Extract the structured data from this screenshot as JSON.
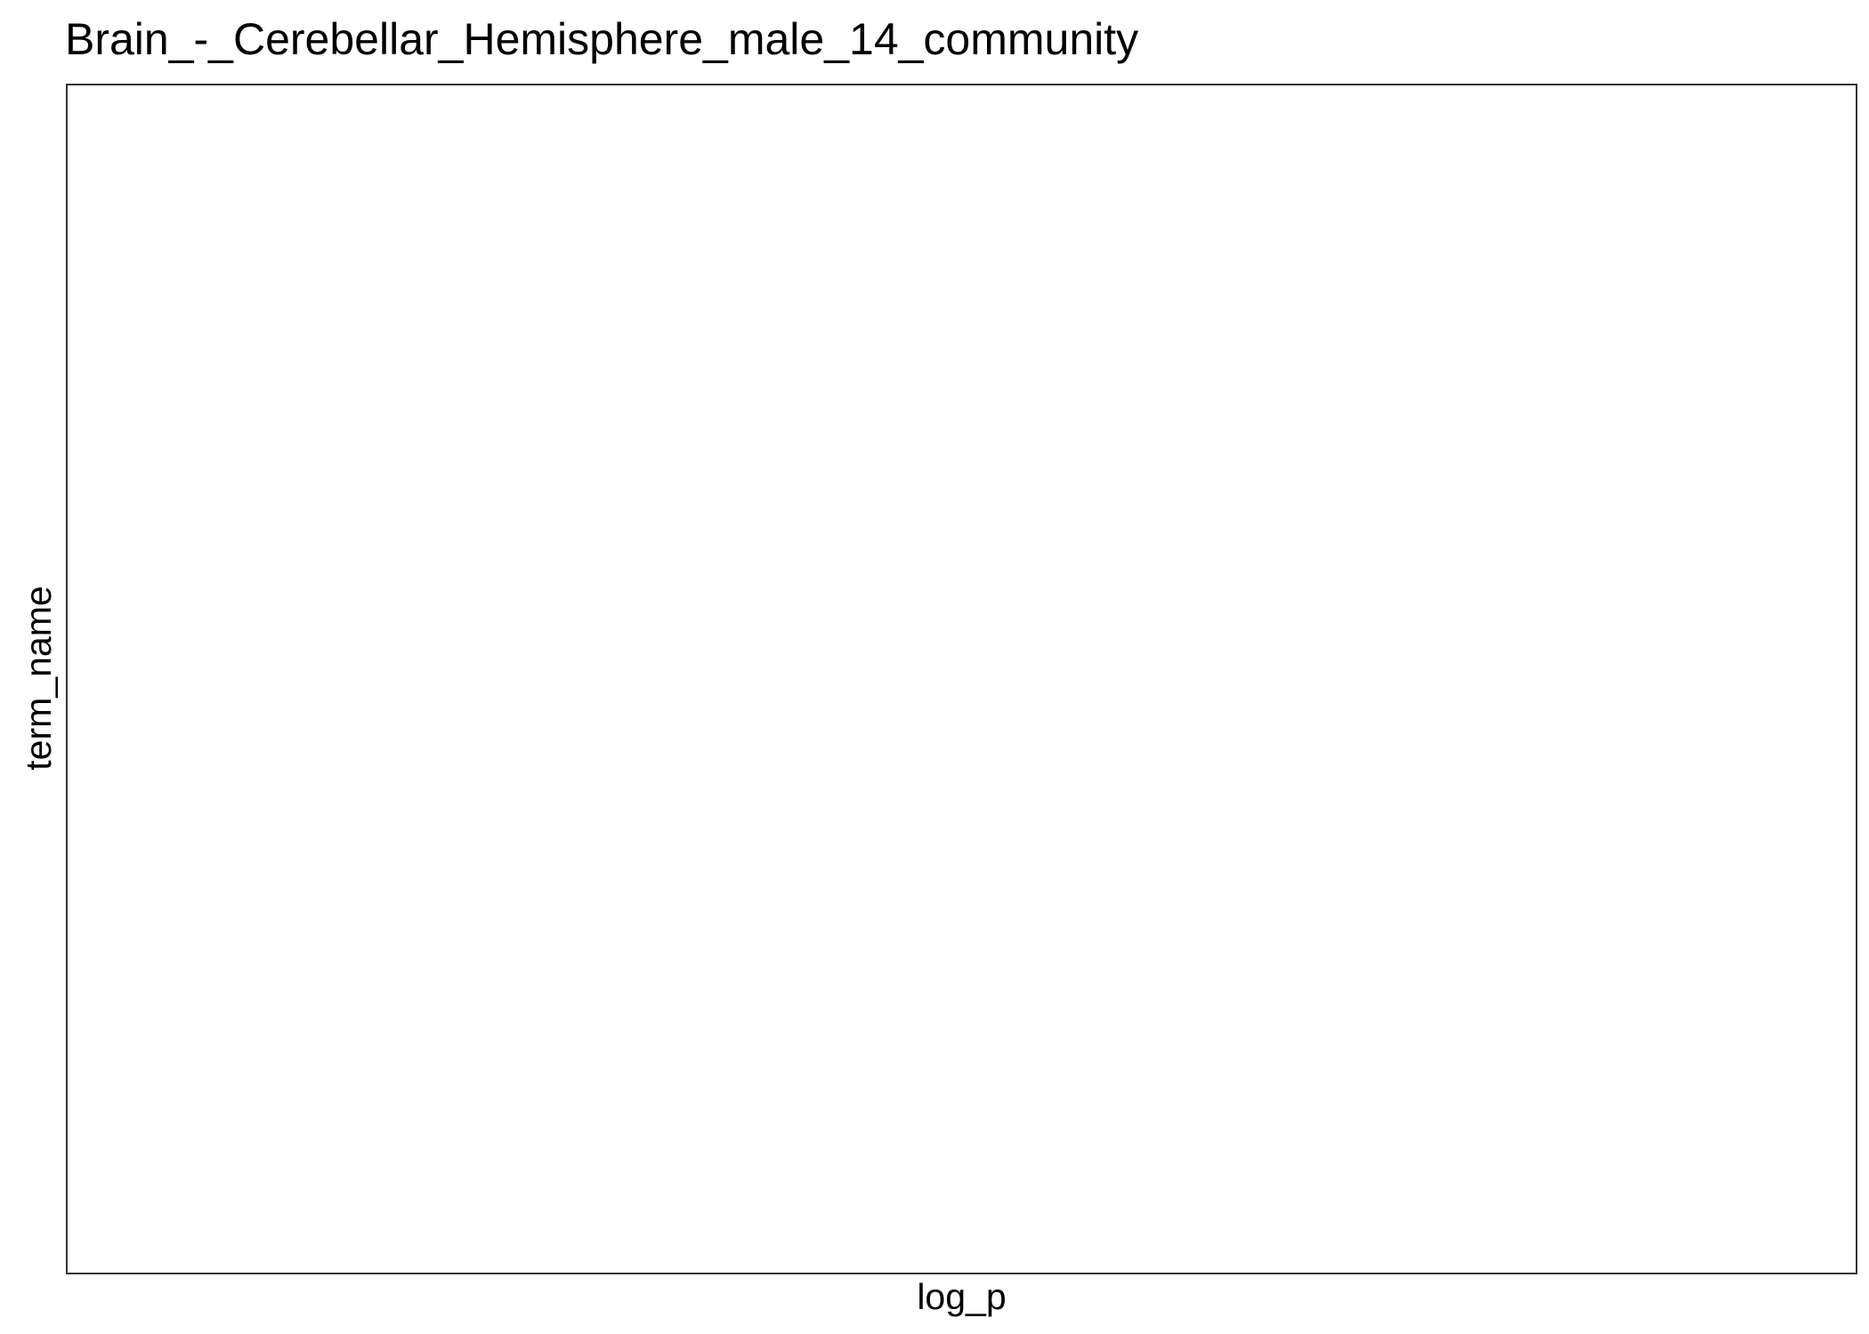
{
  "chart_data": {
    "type": "scatter",
    "title": "Brain_-_Cerebellar_Hemisphere_male_14_community",
    "xlabel": "log_p",
    "ylabel": "term_name",
    "categories": [],
    "series": [],
    "grid": false,
    "legend": "none",
    "colors": {
      "panel_border": "#333333",
      "background": "#ffffff",
      "text": "#000000"
    }
  }
}
